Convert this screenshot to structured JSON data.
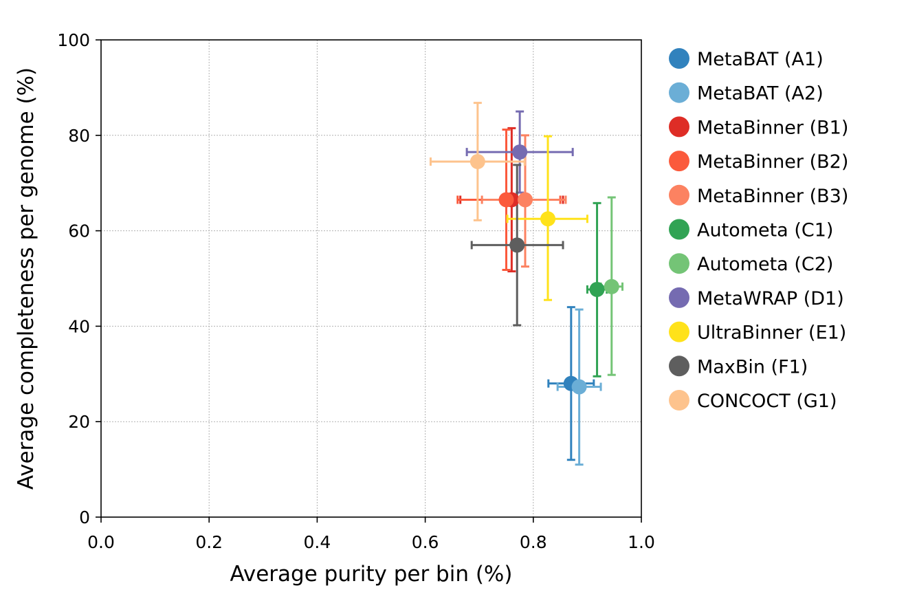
{
  "chart_data": {
    "type": "scatter",
    "title": "",
    "xlabel": "Average purity per bin (%)",
    "ylabel": "Average completeness per genome (%)",
    "xlim": [
      0.0,
      1.0
    ],
    "ylim": [
      0,
      100
    ],
    "xticks": [
      "0.0",
      "0.2",
      "0.4",
      "0.6",
      "0.8",
      "1.0"
    ],
    "yticks": [
      "0",
      "20",
      "40",
      "60",
      "80",
      "100"
    ],
    "grid": true,
    "legend_position": "outside-right",
    "series": [
      {
        "name": "MetaBAT (A1)",
        "color": "#3182bd",
        "x": 0.87,
        "y": 28.0,
        "xerr": [
          0.828,
          0.912
        ],
        "yerr": [
          12.0,
          44.0
        ]
      },
      {
        "name": "MetaBAT (A2)",
        "color": "#6baed6",
        "x": 0.885,
        "y": 27.3,
        "xerr": [
          0.845,
          0.925
        ],
        "yerr": [
          11.0,
          43.5
        ]
      },
      {
        "name": "MetaBinner (B1)",
        "color": "#de2d26",
        "x": 0.76,
        "y": 66.5,
        "xerr": [
          0.665,
          0.855
        ],
        "yerr": [
          51.5,
          81.5
        ]
      },
      {
        "name": "MetaBinner (B2)",
        "color": "#fb5a3c",
        "x": 0.75,
        "y": 66.5,
        "xerr": [
          0.66,
          0.85
        ],
        "yerr": [
          51.8,
          81.2
        ]
      },
      {
        "name": "MetaBinner (B3)",
        "color": "#fc8261",
        "x": 0.785,
        "y": 66.5,
        "xerr": [
          0.705,
          0.86
        ],
        "yerr": [
          52.5,
          80.0
        ]
      },
      {
        "name": "Autometa (C1)",
        "color": "#31a354",
        "x": 0.918,
        "y": 47.7,
        "xerr": [
          0.9,
          0.936
        ],
        "yerr": [
          29.5,
          65.8
        ]
      },
      {
        "name": "Autometa (C2)",
        "color": "#74c476",
        "x": 0.945,
        "y": 48.3,
        "xerr": [
          0.925,
          0.965
        ],
        "yerr": [
          29.8,
          67.0
        ]
      },
      {
        "name": "MetaWRAP (D1)",
        "color": "#756bb1",
        "x": 0.775,
        "y": 76.5,
        "xerr": [
          0.677,
          0.873
        ],
        "yerr": [
          68.0,
          85.0
        ]
      },
      {
        "name": "UltraBinner (E1)",
        "color": "#ffe21a",
        "x": 0.827,
        "y": 62.5,
        "xerr": [
          0.752,
          0.9
        ],
        "yerr": [
          45.5,
          79.8
        ]
      },
      {
        "name": "MaxBin (F1)",
        "color": "#5e5e5e",
        "x": 0.77,
        "y": 57.0,
        "xerr": [
          0.686,
          0.855
        ],
        "yerr": [
          40.2,
          73.8
        ]
      },
      {
        "name": "CONCOCT (G1)",
        "color": "#fdc38d",
        "x": 0.697,
        "y": 74.5,
        "xerr": [
          0.61,
          0.784
        ],
        "yerr": [
          62.2,
          86.8
        ]
      }
    ]
  }
}
